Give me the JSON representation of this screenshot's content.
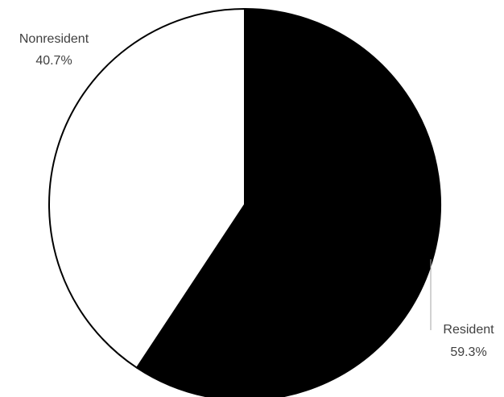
{
  "chart_data": {
    "type": "pie",
    "title": "",
    "start_angle_deg": 0,
    "direction": "clockwise",
    "slices": [
      {
        "name": "Resident",
        "value": 59.3,
        "value_label": "59.3%",
        "color": "#000000"
      },
      {
        "name": "Nonresident",
        "value": 40.7,
        "value_label": "40.7%",
        "color": "#ffffff"
      }
    ],
    "outline_color": "#000000",
    "label_color": "#404040",
    "leader_line_color": "#a6a6a6"
  }
}
